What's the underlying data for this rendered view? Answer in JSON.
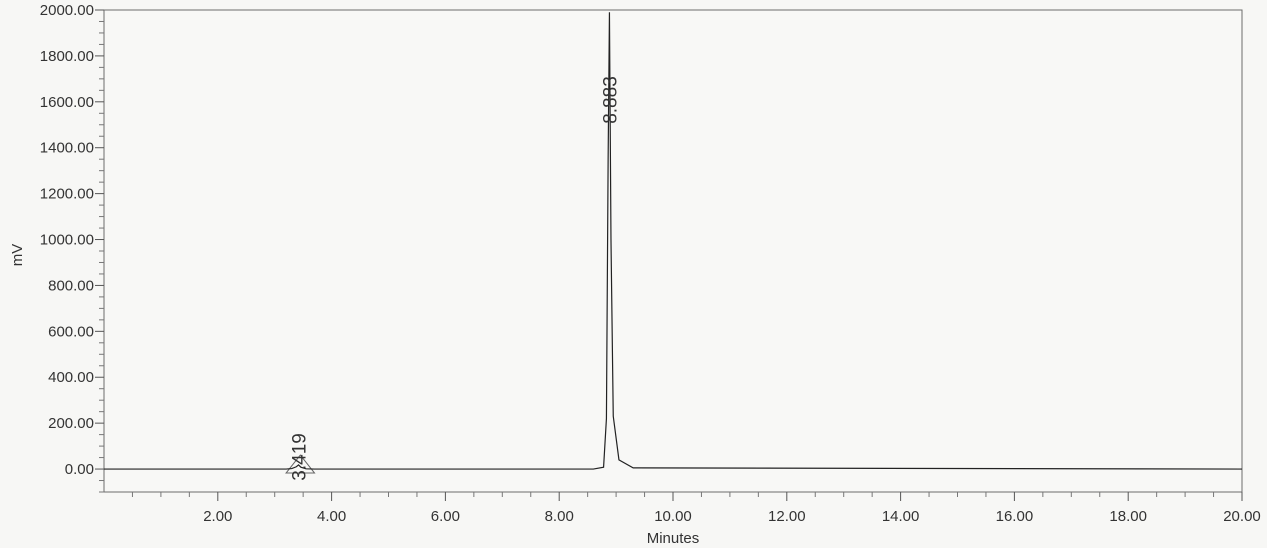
{
  "chart_data": {
    "type": "line",
    "title": "",
    "xlabel": "Minutes",
    "ylabel": "mV",
    "xlim": [
      0.0,
      20.0
    ],
    "ylim": [
      -100.0,
      2000.0
    ],
    "x_ticks": [
      "2.00",
      "4.00",
      "6.00",
      "8.00",
      "10.00",
      "12.00",
      "14.00",
      "16.00",
      "18.00",
      "20.00"
    ],
    "y_ticks": [
      "0.00",
      "200.00",
      "400.00",
      "600.00",
      "800.00",
      "1000.00",
      "1200.00",
      "1400.00",
      "1600.00",
      "1800.00",
      "2000.00"
    ],
    "grid": false,
    "series": [
      {
        "x": [
          0.0,
          3.2,
          3.3,
          3.38,
          3.419,
          3.46,
          3.55,
          3.7,
          8.6,
          8.78,
          8.83,
          8.86,
          8.883,
          8.91,
          8.95,
          9.05,
          9.3,
          20.0
        ],
        "y": [
          0.0,
          0.0,
          2.0,
          10.0,
          18.0,
          8.0,
          1.0,
          0.0,
          0.0,
          8.0,
          220.0,
          1350.0,
          1990.0,
          1000.0,
          230.0,
          40.0,
          5.0,
          0.0
        ]
      }
    ],
    "peak_labels": [
      {
        "x": 3.419,
        "y": 18.0,
        "text": "3.419"
      },
      {
        "x": 8.883,
        "y": 1990.0,
        "text": "8.883"
      }
    ],
    "baseline_segments": [
      {
        "x": [
          3.2,
          3.7
        ]
      }
    ]
  }
}
